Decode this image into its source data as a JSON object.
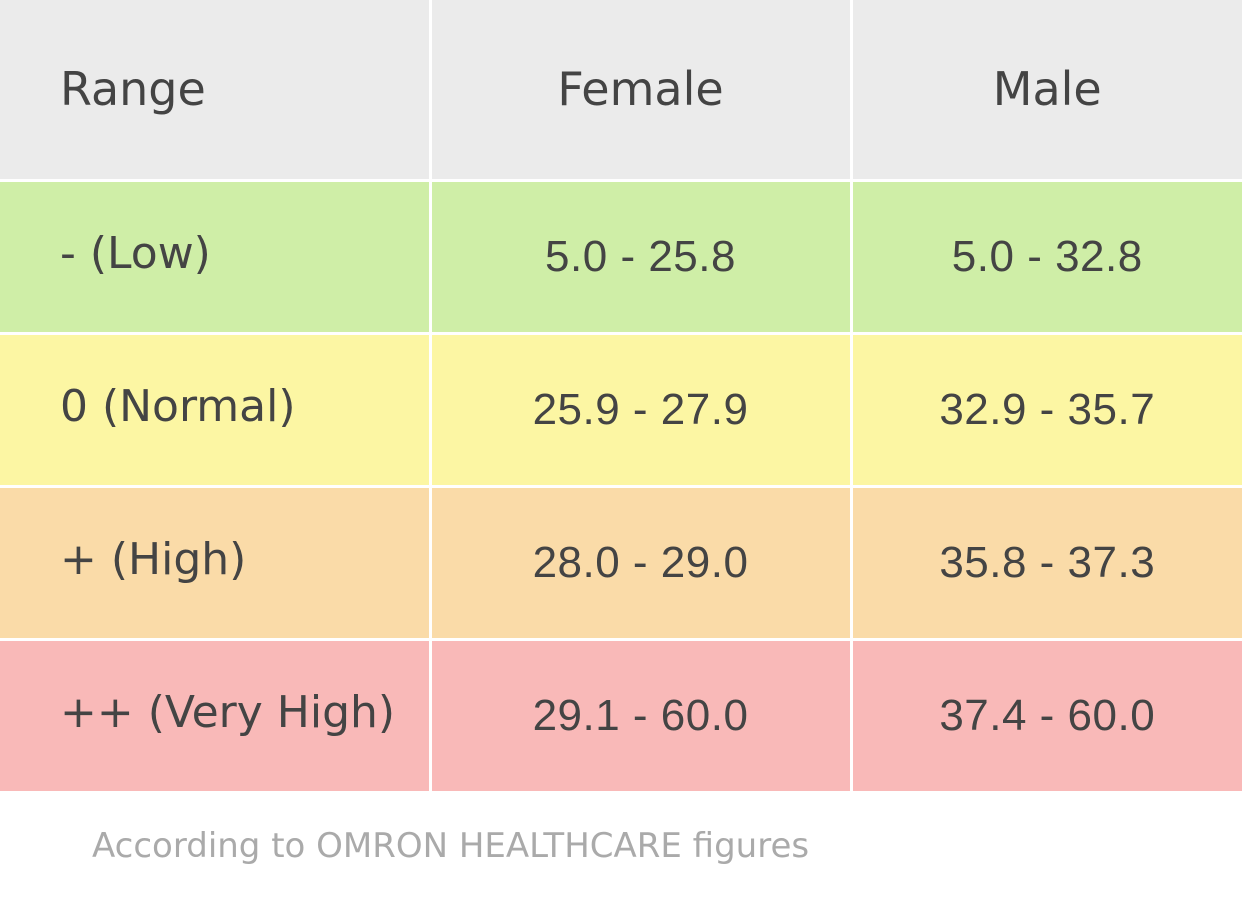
{
  "table": {
    "headers": {
      "range": "Range",
      "female": "Female",
      "male": "Male"
    },
    "rows": [
      {
        "range": "- (Low)",
        "female": "5.0 - 25.8",
        "male": "5.0 - 32.8",
        "color": "#cfeea7"
      },
      {
        "range": "0 (Normal)",
        "female": "25.9 - 27.9",
        "male": "32.9 - 35.7",
        "color": "#fcf6a3"
      },
      {
        "range": "+ (High)",
        "female": "28.0 - 29.0",
        "male": "35.8 - 37.3",
        "color": "#fadba8"
      },
      {
        "range": "++ (Very High)",
        "female": "29.1 - 60.0",
        "male": "37.4 - 60.0",
        "color": "#f9b9b8"
      }
    ],
    "header_color": "#ebebeb"
  },
  "footnote": "According to OMRON HEALTHCARE figures"
}
